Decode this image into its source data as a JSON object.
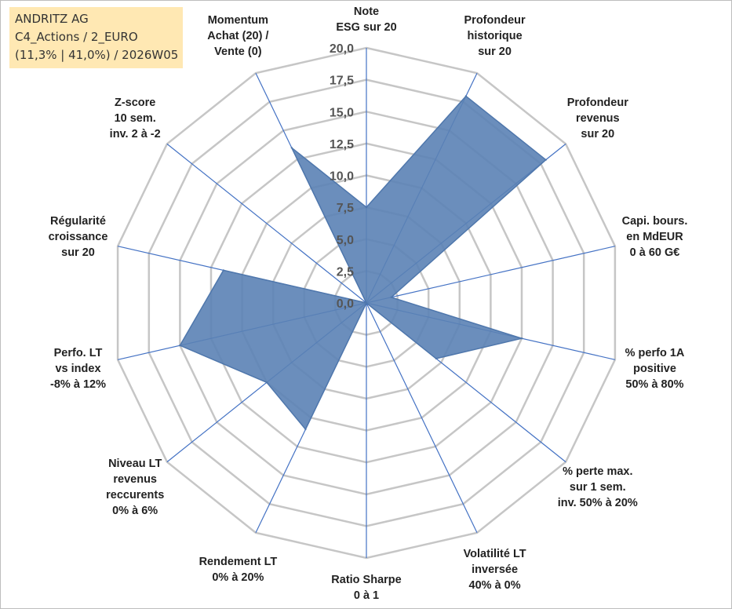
{
  "info": {
    "line1": "ANDRITZ AG",
    "line2": "C4_Actions / 2_EURO",
    "line3": "(11,3% | 41,0%) / 2026W05"
  },
  "colors": {
    "fill": "#5b82b5",
    "stroke": "#4f77ac",
    "spoke": "#4472c4",
    "grid": "#c6c6c6",
    "info_bg": "#ffe8b3"
  },
  "chart_data": {
    "type": "radar",
    "title": "",
    "rlim": [
      0,
      20
    ],
    "ticks": [
      "0,0",
      "2,5",
      "5,0",
      "7,5",
      "10,0",
      "12,5",
      "15,0",
      "17,5",
      "20,0"
    ],
    "grid": true,
    "axes": [
      {
        "label_lines": [
          "Note",
          "ESG sur 20"
        ],
        "value": 7.5
      },
      {
        "label_lines": [
          "Profondeur",
          "historique",
          "sur 20"
        ],
        "value": 18.0
      },
      {
        "label_lines": [
          "Profondeur",
          "revenus",
          "sur 20"
        ],
        "value": 18.0
      },
      {
        "label_lines": [
          "Capi. bours.",
          "en MdEUR",
          "0 à 60 G€"
        ],
        "value": 2.0
      },
      {
        "label_lines": [
          "% perfo 1A",
          "positive",
          "50% à 80%"
        ],
        "value": 12.5
      },
      {
        "label_lines": [
          "% perte max.",
          "sur 1 sem.",
          "inv. 50% à 20%"
        ],
        "value": 7.0
      },
      {
        "label_lines": [
          "Volatilité LT",
          "inversée",
          "40% à 0%"
        ],
        "value": 0.0
      },
      {
        "label_lines": [
          "Ratio Sharpe",
          "0 à 1"
        ],
        "value": 0.0
      },
      {
        "label_lines": [
          "Rendement LT",
          "0% à 20%"
        ],
        "value": 11.0
      },
      {
        "label_lines": [
          "Niveau LT",
          "revenus",
          "reccurents",
          "0% à 6%"
        ],
        "value": 10.0
      },
      {
        "label_lines": [
          "Perfo. LT",
          "vs index",
          "-8% à 12%"
        ],
        "value": 15.0
      },
      {
        "label_lines": [
          "Régularité",
          "croissance",
          "sur 20"
        ],
        "value": 11.5
      },
      {
        "label_lines": [
          "Z-score",
          "10 sem.",
          "inv. 2 à -2"
        ],
        "value": 0.0
      },
      {
        "label_lines": [
          "Momentum",
          "Achat (20) /",
          "Vente (0)"
        ],
        "value": 13.5
      }
    ]
  }
}
